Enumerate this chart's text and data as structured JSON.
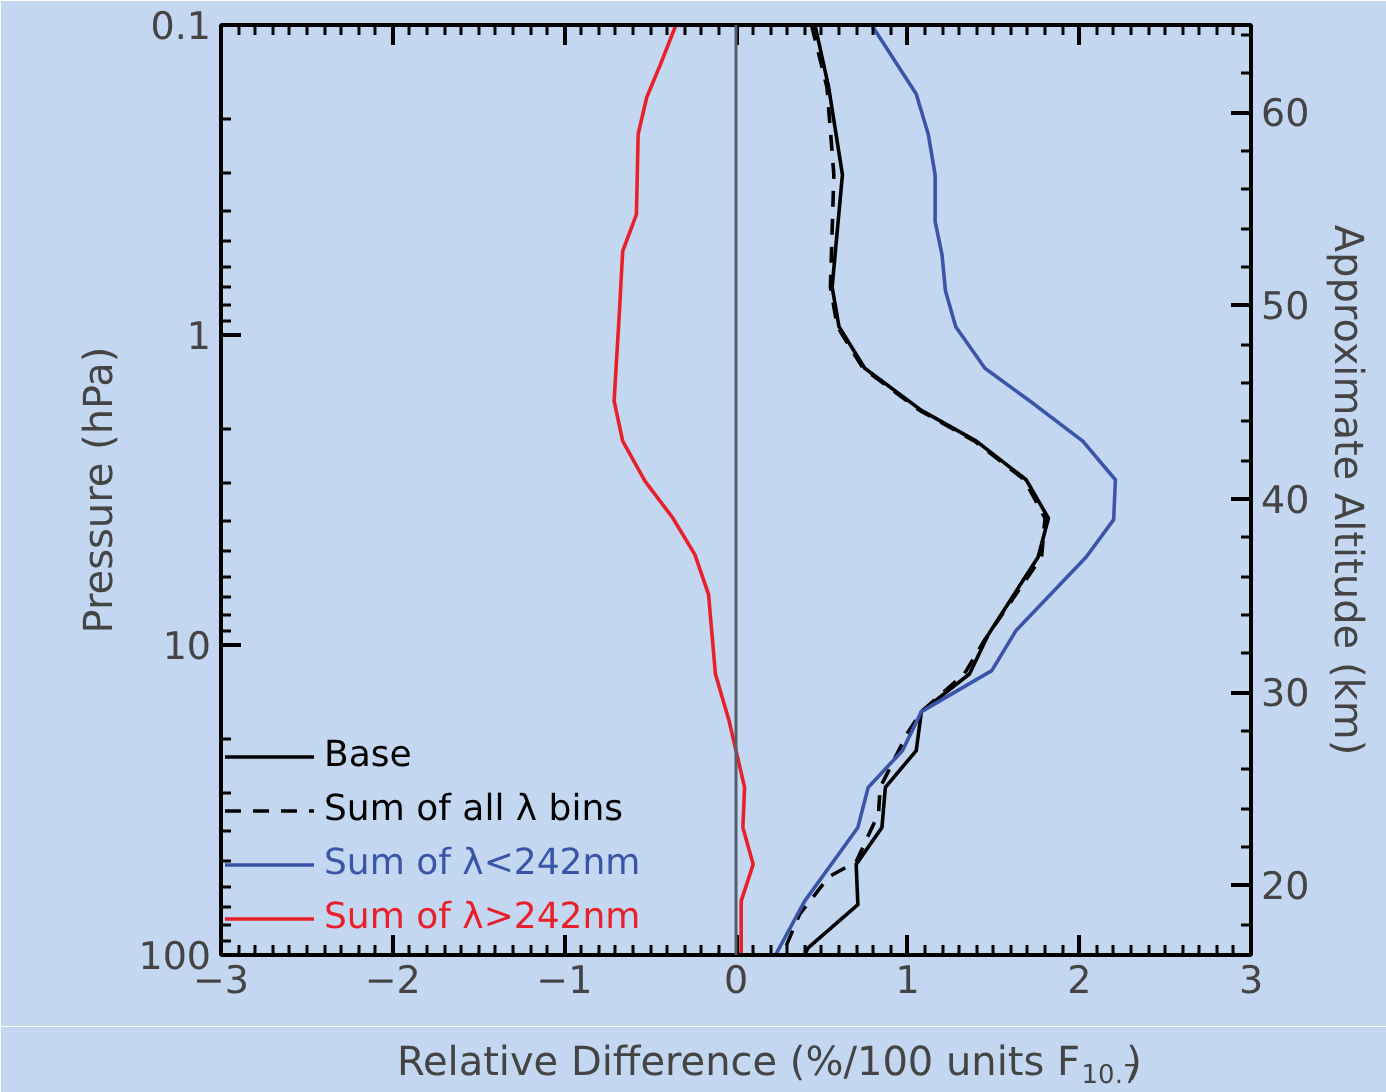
{
  "chart_data": {
    "type": "line",
    "xlabel": "Relative Difference (%/100 units F$_{10.7}$)",
    "ylabel": "Pressure (hPa)",
    "y2label": "Approximate Altitude (km)",
    "xlim": [
      -3,
      3
    ],
    "xticks": [
      -3,
      -2,
      -1,
      0,
      1,
      2,
      3
    ],
    "ylim": [
      100,
      0.1
    ],
    "yticks": [
      0.1,
      1,
      10,
      100
    ],
    "log": "y",
    "y2lim": [
      16.4,
      64.5
    ],
    "y2ticks": [
      20,
      30,
      40,
      50,
      60
    ],
    "grid": false,
    "legend": "bottom left",
    "marker": "none",
    "ref_lines": [
      {
        "axis": "x",
        "value": 0,
        "color": "#555c66"
      }
    ],
    "series": [
      {
        "name": "Base",
        "color": "#000000",
        "line_style": "solid",
        "x": [
          0.46,
          0.54,
          0.62,
          0.56,
          0.6,
          0.75,
          1.08,
          1.4,
          1.69,
          1.82,
          1.76,
          1.47,
          1.36,
          1.08,
          1.05,
          0.87,
          0.85,
          0.7,
          0.71,
          0.42,
          0.4
        ],
        "values": [
          0.1,
          0.159,
          0.304,
          0.7,
          0.94,
          1.28,
          1.75,
          2.2,
          2.93,
          3.9,
          5.2,
          9.25,
          12.4,
          16.4,
          21.9,
          28.8,
          38.8,
          51,
          68.8,
          94.8,
          100
        ]
      },
      {
        "name": "Sum of all λ bins",
        "color": "#000000",
        "line_style": "dashed",
        "x": [
          0.44,
          0.53,
          0.57,
          0.55,
          0.59,
          0.74,
          1.07,
          1.39,
          1.68,
          1.8,
          1.78,
          1.45,
          1.33,
          1.08,
          1.0,
          0.84,
          0.83,
          0.7,
          0.54,
          0.37,
          0.27
        ],
        "values": [
          0.1,
          0.159,
          0.304,
          0.7,
          0.94,
          1.28,
          1.75,
          2.2,
          2.93,
          3.9,
          5.2,
          9.6,
          12.4,
          16.4,
          19.2,
          28.8,
          35,
          50,
          56,
          74,
          100
        ]
      },
      {
        "name": "Sum of λ<242nm",
        "color": "#3a55a8",
        "line_style": "solid",
        "x": [
          0.79,
          1.05,
          1.12,
          1.16,
          1.16,
          1.2,
          1.22,
          1.28,
          1.45,
          1.71,
          2.02,
          2.21,
          2.2,
          2.04,
          1.63,
          1.49,
          1.08,
          0.97,
          0.77,
          0.71,
          0.4,
          0.23
        ],
        "values": [
          0.1,
          0.167,
          0.225,
          0.304,
          0.43,
          0.55,
          0.72,
          0.94,
          1.28,
          1.63,
          2.2,
          2.93,
          3.94,
          5.2,
          9.0,
          12.1,
          16.4,
          21.9,
          28.8,
          38.8,
          67,
          100
        ]
      },
      {
        "name": "Sum of λ>242nm",
        "color": "#e8202a",
        "line_style": "solid",
        "x": [
          -0.35,
          -0.44,
          -0.52,
          -0.57,
          -0.58,
          -0.66,
          -0.68,
          -0.71,
          -0.66,
          -0.53,
          -0.37,
          -0.24,
          -0.16,
          -0.12,
          -0.04,
          0.05,
          0.04,
          0.1,
          0.03,
          0.03
        ],
        "values": [
          0.1,
          0.134,
          0.171,
          0.225,
          0.408,
          0.536,
          0.858,
          1.63,
          2.2,
          2.96,
          3.88,
          5.1,
          6.87,
          12.4,
          17.6,
          28.8,
          38.8,
          51,
          67,
          100
        ]
      }
    ]
  }
}
